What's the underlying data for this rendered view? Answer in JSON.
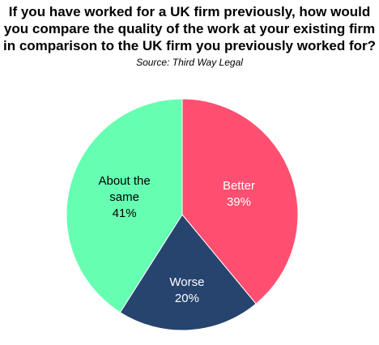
{
  "chart_data": {
    "type": "pie",
    "title": "If you have worked for a UK firm previously, how would you compare the quality of the work at your existing firm in comparison to the UK firm you previously worked for?",
    "subtitle": "Source: Third Way Legal",
    "categories": [
      "Better",
      "Worse",
      "About the same"
    ],
    "values": [
      39,
      20,
      41
    ],
    "value_labels": [
      "39%",
      "20%",
      "41%"
    ],
    "colors": [
      "#ff4f70",
      "#26446e",
      "#66ffb2"
    ],
    "label_colors": [
      "#ffffff",
      "#ffffff",
      "#000000"
    ]
  }
}
